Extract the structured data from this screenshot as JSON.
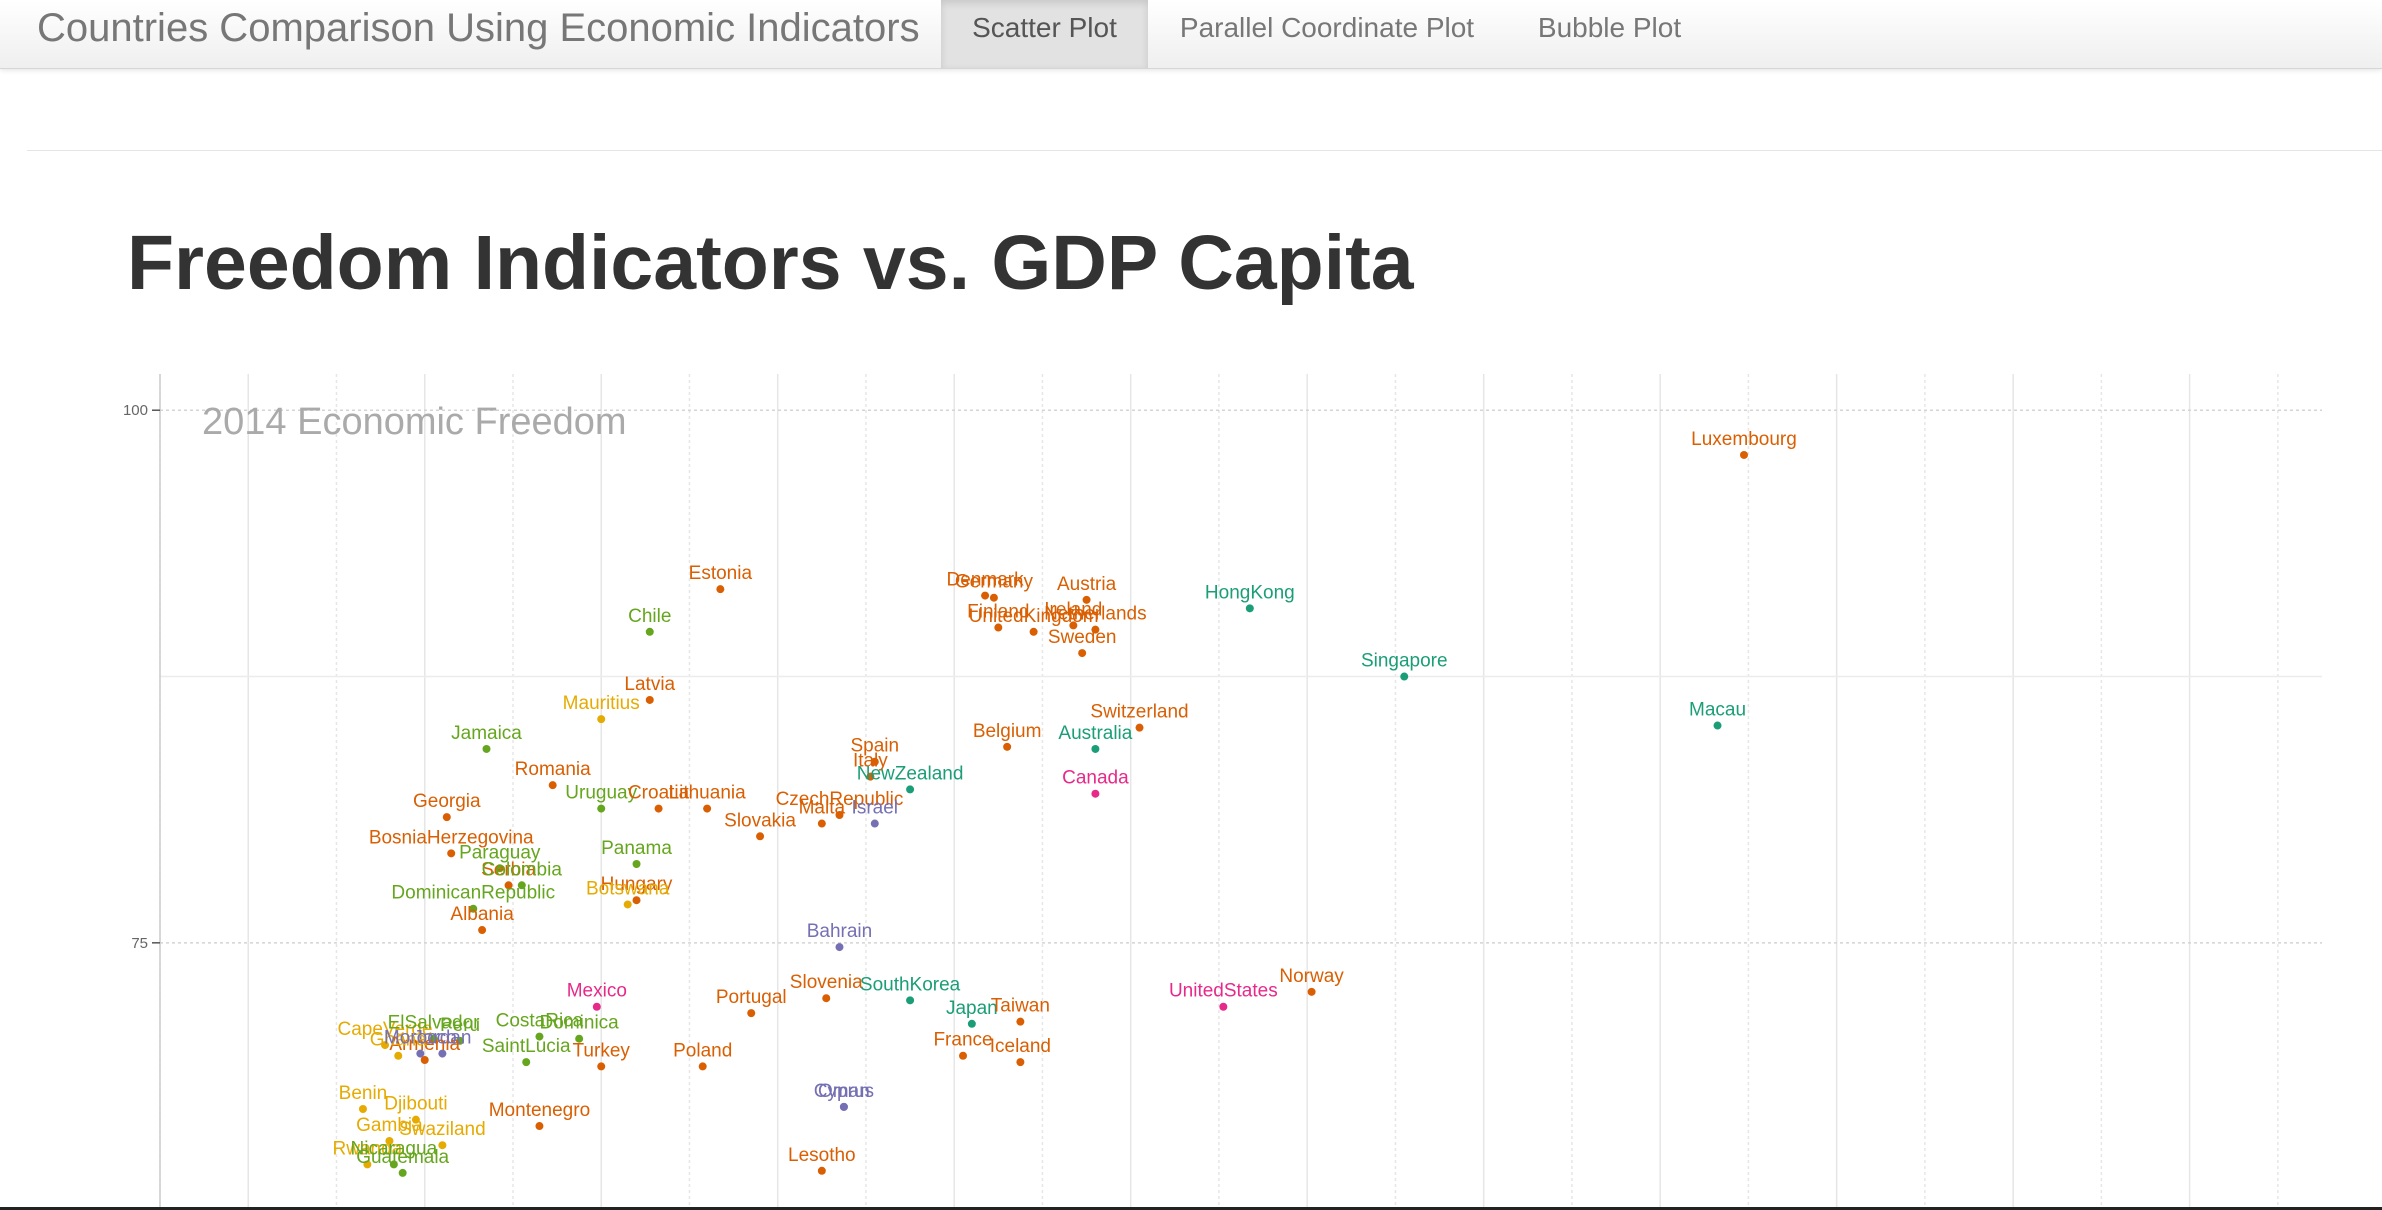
{
  "navbar": {
    "brand": "Countries Comparison Using Economic Indicators",
    "tabs": [
      {
        "label": "Scatter Plot",
        "active": true
      },
      {
        "label": "Parallel Coordinate Plot",
        "active": false
      },
      {
        "label": "Bubble Plot",
        "active": false
      }
    ]
  },
  "page": {
    "title": "Freedom Indicators vs. GDP Capita"
  },
  "chart_data": {
    "type": "scatter",
    "title": "2014 Economic Freedom",
    "xlabel": "",
    "ylabel": "",
    "y_ticks": [
      75,
      100
    ],
    "ylim": [
      62.6,
      101.7
    ],
    "xlim": [
      0,
      24.5
    ],
    "grid": true,
    "colors": {
      "orange": "#d95f02",
      "green": "#66a61e",
      "teal": "#1b9e77",
      "purple": "#7570b3",
      "magenta": "#e7298a",
      "gold": "#e6ab02"
    },
    "points": [
      {
        "name": "Luxembourg",
        "x": 17.95,
        "y": 97.9,
        "color": "orange"
      },
      {
        "name": "Estonia",
        "x": 6.35,
        "y": 91.6,
        "color": "orange"
      },
      {
        "name": "HongKong",
        "x": 12.35,
        "y": 90.7,
        "color": "teal"
      },
      {
        "name": "Chile",
        "x": 5.55,
        "y": 89.6,
        "color": "green"
      },
      {
        "name": "Denmark",
        "x": 9.35,
        "y": 91.3,
        "color": "orange"
      },
      {
        "name": "Germany",
        "x": 9.45,
        "y": 91.2,
        "color": "orange"
      },
      {
        "name": "Austria",
        "x": 10.5,
        "y": 91.1,
        "color": "orange"
      },
      {
        "name": "Finland",
        "x": 9.5,
        "y": 89.8,
        "color": "orange"
      },
      {
        "name": "Ireland",
        "x": 10.35,
        "y": 89.9,
        "color": "orange"
      },
      {
        "name": "Netherlands",
        "x": 10.6,
        "y": 89.7,
        "color": "orange"
      },
      {
        "name": "UnitedKingdom",
        "x": 9.9,
        "y": 89.6,
        "color": "orange"
      },
      {
        "name": "Sweden",
        "x": 10.45,
        "y": 88.6,
        "color": "orange"
      },
      {
        "name": "Switzerland",
        "x": 11.1,
        "y": 85.1,
        "color": "orange"
      },
      {
        "name": "Jamaica",
        "x": 3.7,
        "y": 84.1,
        "color": "green"
      },
      {
        "name": "Mauritius",
        "x": 5.0,
        "y": 85.5,
        "color": "gold"
      },
      {
        "name": "Latvia",
        "x": 5.55,
        "y": 86.4,
        "color": "orange"
      },
      {
        "name": "Italy",
        "x": 8.05,
        "y": 82.8,
        "color": "orange"
      },
      {
        "name": "Australia",
        "x": 10.6,
        "y": 84.1,
        "color": "teal"
      },
      {
        "name": "Singapore",
        "x": 14.1,
        "y": 87.5,
        "color": "teal"
      },
      {
        "name": "Macau",
        "x": 17.65,
        "y": 85.2,
        "color": "teal"
      },
      {
        "name": "Belgium",
        "x": 9.6,
        "y": 84.2,
        "color": "orange"
      },
      {
        "name": "Spain",
        "x": 8.1,
        "y": 83.5,
        "color": "orange"
      },
      {
        "name": "CzechRepublic",
        "x": 7.7,
        "y": 81.0,
        "color": "orange"
      },
      {
        "name": "NewZealand",
        "x": 8.5,
        "y": 82.2,
        "color": "teal"
      },
      {
        "name": "Malta",
        "x": 7.5,
        "y": 80.6,
        "color": "orange"
      },
      {
        "name": "Israel",
        "x": 8.1,
        "y": 80.6,
        "color": "purple"
      },
      {
        "name": "Canada",
        "x": 10.6,
        "y": 82.0,
        "color": "magenta"
      },
      {
        "name": "Georgia",
        "x": 3.25,
        "y": 80.9,
        "color": "orange"
      },
      {
        "name": "Romania",
        "x": 4.45,
        "y": 82.4,
        "color": "orange"
      },
      {
        "name": "Uruguay",
        "x": 5.0,
        "y": 81.3,
        "color": "green"
      },
      {
        "name": "Croatia",
        "x": 5.65,
        "y": 81.3,
        "color": "orange"
      },
      {
        "name": "Lithuania",
        "x": 6.2,
        "y": 81.3,
        "color": "orange"
      },
      {
        "name": "Slovakia",
        "x": 6.8,
        "y": 80.0,
        "color": "orange"
      },
      {
        "name": "BosniaHerzegovina",
        "x": 3.3,
        "y": 79.2,
        "color": "orange"
      },
      {
        "name": "Paraguay",
        "x": 3.85,
        "y": 78.5,
        "color": "green"
      },
      {
        "name": "Panama",
        "x": 5.4,
        "y": 78.7,
        "color": "green"
      },
      {
        "name": "Serbia",
        "x": 3.95,
        "y": 77.7,
        "color": "orange"
      },
      {
        "name": "Colombia",
        "x": 4.1,
        "y": 77.7,
        "color": "green"
      },
      {
        "name": "Hungary",
        "x": 5.4,
        "y": 77.0,
        "color": "orange"
      },
      {
        "name": "Botswana",
        "x": 5.3,
        "y": 76.8,
        "color": "gold"
      },
      {
        "name": "DominicanRepublic",
        "x": 3.55,
        "y": 76.6,
        "color": "green"
      },
      {
        "name": "Albania",
        "x": 3.65,
        "y": 75.6,
        "color": "orange"
      },
      {
        "name": "Bahrain",
        "x": 7.7,
        "y": 74.8,
        "color": "purple"
      },
      {
        "name": "Norway",
        "x": 13.05,
        "y": 72.7,
        "color": "orange"
      },
      {
        "name": "Portugal",
        "x": 6.7,
        "y": 71.7,
        "color": "orange"
      },
      {
        "name": "Slovenia",
        "x": 7.55,
        "y": 72.4,
        "color": "orange"
      },
      {
        "name": "SouthKorea",
        "x": 8.5,
        "y": 72.3,
        "color": "teal"
      },
      {
        "name": "UnitedStates",
        "x": 12.05,
        "y": 72.0,
        "color": "magenta"
      },
      {
        "name": "Japan",
        "x": 9.2,
        "y": 71.2,
        "color": "teal"
      },
      {
        "name": "Taiwan",
        "x": 9.75,
        "y": 71.3,
        "color": "orange"
      },
      {
        "name": "CapeVerde",
        "x": 2.55,
        "y": 70.2,
        "color": "gold"
      },
      {
        "name": "ElSalvador",
        "x": 3.1,
        "y": 70.5,
        "color": "green"
      },
      {
        "name": "Peru",
        "x": 3.4,
        "y": 70.4,
        "color": "green"
      },
      {
        "name": "CostaRica",
        "x": 4.3,
        "y": 70.6,
        "color": "green"
      },
      {
        "name": "Dominica",
        "x": 4.75,
        "y": 70.5,
        "color": "green"
      },
      {
        "name": "Mexico",
        "x": 4.95,
        "y": 72.0,
        "color": "magenta"
      },
      {
        "name": "Turkey",
        "x": 5.0,
        "y": 69.2,
        "color": "orange"
      },
      {
        "name": "Poland",
        "x": 6.15,
        "y": 69.2,
        "color": "orange"
      },
      {
        "name": "France",
        "x": 9.1,
        "y": 69.7,
        "color": "orange"
      },
      {
        "name": "Iceland",
        "x": 9.75,
        "y": 69.4,
        "color": "orange"
      },
      {
        "name": "Benin",
        "x": 2.3,
        "y": 67.2,
        "color": "gold"
      },
      {
        "name": "Jordan",
        "x": 3.2,
        "y": 69.8,
        "color": "purple"
      },
      {
        "name": "Armenia",
        "x": 3.0,
        "y": 69.5,
        "color": "orange"
      },
      {
        "name": "Ghana",
        "x": 2.7,
        "y": 69.7,
        "color": "gold"
      },
      {
        "name": "Morocco",
        "x": 2.95,
        "y": 69.8,
        "color": "purple"
      },
      {
        "name": "SaintLucia",
        "x": 4.15,
        "y": 69.4,
        "color": "green"
      },
      {
        "name": "Cyprus",
        "x": 7.75,
        "y": 67.3,
        "color": "purple"
      },
      {
        "name": "Oman",
        "x": 7.75,
        "y": 67.3,
        "color": "purple"
      },
      {
        "name": "Montenegro",
        "x": 4.3,
        "y": 66.4,
        "color": "orange"
      },
      {
        "name": "Djibouti",
        "x": 2.9,
        "y": 66.7,
        "color": "gold"
      },
      {
        "name": "Gambia",
        "x": 2.6,
        "y": 65.7,
        "color": "gold"
      },
      {
        "name": "Swaziland",
        "x": 3.2,
        "y": 65.5,
        "color": "gold"
      },
      {
        "name": "Rwanda",
        "x": 2.35,
        "y": 64.6,
        "color": "gold"
      },
      {
        "name": "Nicaragua",
        "x": 2.65,
        "y": 64.6,
        "color": "green"
      },
      {
        "name": "Guatemala",
        "x": 2.75,
        "y": 64.2,
        "color": "green"
      },
      {
        "name": "Lesotho",
        "x": 7.5,
        "y": 64.3,
        "color": "orange"
      }
    ]
  }
}
